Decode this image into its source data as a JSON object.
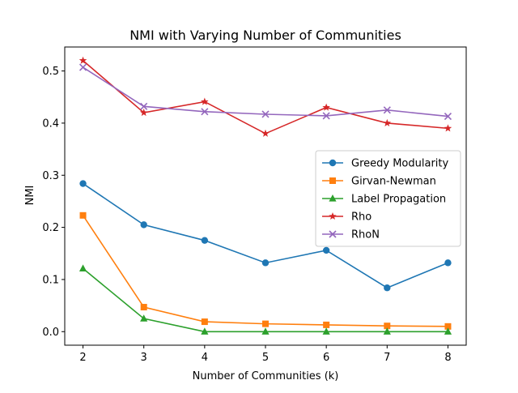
{
  "chart_data": {
    "type": "line",
    "title": "NMI with Varying Number of Communities",
    "xlabel": "Number of Communities (k)",
    "ylabel": "NMI",
    "x": [
      2,
      3,
      4,
      5,
      6,
      7,
      8
    ],
    "xlim": [
      1.7,
      8.3
    ],
    "ylim": [
      -0.026,
      0.546
    ],
    "xticks": [
      2,
      3,
      4,
      5,
      6,
      7,
      8
    ],
    "yticks": [
      0.0,
      0.1,
      0.2,
      0.3,
      0.4,
      0.5
    ],
    "ytick_labels": [
      "0.0",
      "0.1",
      "0.2",
      "0.3",
      "0.4",
      "0.5"
    ],
    "grid": false,
    "legend_position": "center-right",
    "series": [
      {
        "name": "Greedy Modularity",
        "color": "#1f77b4",
        "marker": "circle",
        "values": [
          0.284,
          0.205,
          0.175,
          0.132,
          0.156,
          0.084,
          0.132
        ]
      },
      {
        "name": "Girvan-Newman",
        "color": "#ff7f0e",
        "marker": "square",
        "values": [
          0.223,
          0.047,
          0.019,
          0.015,
          0.013,
          0.011,
          0.01
        ]
      },
      {
        "name": "Label Propagation",
        "color": "#2ca02c",
        "marker": "triangle",
        "values": [
          0.121,
          0.025,
          0.0,
          0.0,
          0.0,
          0.0,
          0.0
        ]
      },
      {
        "name": "Rho",
        "color": "#d62728",
        "marker": "star",
        "values": [
          0.52,
          0.42,
          0.441,
          0.38,
          0.43,
          0.4,
          0.39
        ]
      },
      {
        "name": "RhoN",
        "color": "#9467bd",
        "marker": "x",
        "values": [
          0.507,
          0.432,
          0.422,
          0.417,
          0.414,
          0.425,
          0.413
        ]
      }
    ]
  }
}
